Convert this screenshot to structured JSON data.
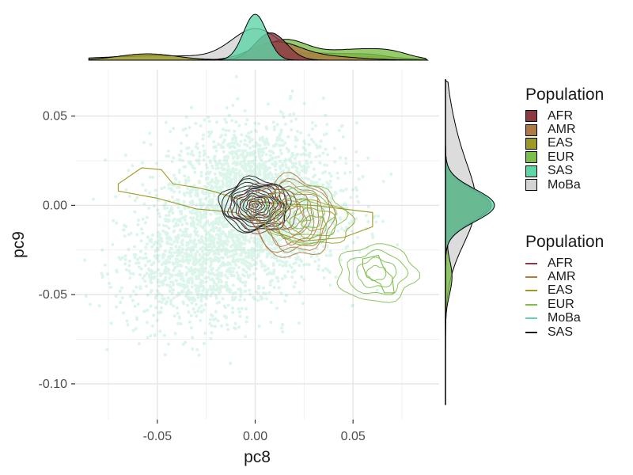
{
  "chart_data": {
    "type": "scatter",
    "xlabel": "pc8",
    "ylabel": "pc9",
    "xlim": [
      -0.092,
      0.094
    ],
    "ylim": [
      -0.12,
      0.076
    ],
    "x_ticks": [
      -0.05,
      0.0,
      0.05
    ],
    "x_tick_labels": [
      "-0.05",
      "0.00",
      "0.05"
    ],
    "y_ticks": [
      0.05,
      0.0,
      -0.05,
      -0.1
    ],
    "y_tick_labels": [
      "0.05",
      "0.00",
      "-0.05",
      "-0.10"
    ],
    "grid": true,
    "legend_position": "right",
    "scatter": {
      "name": "MoBa",
      "color": "#5fd6a8",
      "n_points": 3200,
      "center": [
        0.0,
        0.0
      ],
      "spread": [
        0.022,
        0.022
      ],
      "extra_cluster_center": [
        -0.035,
        -0.035
      ],
      "extra_cluster_spread": [
        0.018,
        0.018
      ]
    },
    "contours": [
      {
        "name": "MoBa",
        "color": "#5fd6a8",
        "centers": [
          [
            0.0,
            0.0
          ]
        ],
        "radii": [
          [
            0.006,
            0.006
          ]
        ]
      },
      {
        "name": "SAS",
        "color": "#1a1a1a",
        "centers": [
          [
            0.0,
            0.0
          ]
        ],
        "radii": [
          [
            0.0015,
            0.0012
          ],
          [
            0.003,
            0.0025
          ],
          [
            0.0045,
            0.0037
          ],
          [
            0.006,
            0.005
          ],
          [
            0.0075,
            0.0062
          ],
          [
            0.009,
            0.0075
          ],
          [
            0.0105,
            0.0088
          ],
          [
            0.012,
            0.01
          ],
          [
            0.0135,
            0.0113
          ],
          [
            0.015,
            0.0125
          ],
          [
            0.0165,
            0.0138
          ],
          [
            0.018,
            0.015
          ]
        ]
      },
      {
        "name": "AFR",
        "color": "#8b3a44",
        "centers": [
          [
            0.005,
            -0.002
          ]
        ],
        "radii": [
          [
            0.005,
            0.004
          ],
          [
            0.009,
            0.007
          ],
          [
            0.013,
            0.01
          ],
          [
            0.017,
            0.013
          ]
        ]
      },
      {
        "name": "AMR",
        "color": "#b07a45",
        "centers": [
          [
            0.02,
            -0.008
          ],
          [
            0.018,
            -0.005
          ]
        ],
        "radii": [
          [
            0.006,
            0.008
          ],
          [
            0.01,
            0.013
          ],
          [
            0.015,
            0.017
          ],
          [
            0.02,
            0.021
          ]
        ]
      },
      {
        "name": "EAS",
        "color": "#9a9a24",
        "centers": [
          [
            0.03,
            -0.01
          ]
        ],
        "radii": [
          [
            0.006,
            0.004
          ],
          [
            0.012,
            0.008
          ],
          [
            0.02,
            0.012
          ]
        ]
      },
      {
        "name": "EUR",
        "color": "#7cbf4a",
        "centers": [
          [
            0.025,
            -0.005
          ],
          [
            0.062,
            -0.038
          ]
        ],
        "radii": [
          [
            0.005,
            0.004
          ],
          [
            0.01,
            0.008
          ],
          [
            0.015,
            0.012
          ],
          [
            0.02,
            0.016
          ]
        ]
      }
    ],
    "eas_outline": [
      [
        -0.07,
        0.012
      ],
      [
        -0.058,
        0.021
      ],
      [
        -0.048,
        0.02
      ],
      [
        -0.042,
        0.012
      ],
      [
        -0.03,
        0.01
      ],
      [
        -0.022,
        0.008
      ],
      [
        -0.01,
        0.004
      ],
      [
        0.0,
        0.002
      ],
      [
        0.01,
        0.001
      ],
      [
        0.03,
        0.0
      ],
      [
        0.045,
        -0.002
      ],
      [
        0.06,
        -0.004
      ],
      [
        0.06,
        -0.012
      ],
      [
        0.045,
        -0.018
      ],
      [
        0.025,
        -0.02
      ],
      [
        0.01,
        -0.015
      ],
      [
        0.0,
        -0.008
      ],
      [
        -0.01,
        -0.004
      ],
      [
        -0.03,
        -0.002
      ],
      [
        -0.05,
        0.004
      ],
      [
        -0.07,
        0.008
      ]
    ],
    "eur_outline": [
      [
        0.055,
        -0.03
      ],
      [
        0.063,
        -0.028
      ],
      [
        0.066,
        -0.036
      ],
      [
        0.07,
        -0.04
      ],
      [
        0.071,
        -0.049
      ],
      [
        0.066,
        -0.049
      ],
      [
        0.064,
        -0.044
      ],
      [
        0.057,
        -0.04
      ],
      [
        0.055,
        -0.034
      ]
    ],
    "marginal_x": [
      {
        "name": "MoBa",
        "fill": "#d3d3d3",
        "peaks": [
          [
            0.0,
            1.0,
            0.012
          ],
          [
            -0.05,
            0.15,
            0.03
          ],
          [
            0.04,
            0.15,
            0.03
          ]
        ]
      },
      {
        "name": "EAS",
        "fill": "#9a9a24",
        "peaks": [
          [
            -0.055,
            0.22,
            0.015
          ],
          [
            0.03,
            0.25,
            0.02
          ],
          [
            0.06,
            0.12,
            0.01
          ]
        ]
      },
      {
        "name": "EUR",
        "fill": "#7cbf4a",
        "peaks": [
          [
            0.015,
            0.7,
            0.012
          ],
          [
            0.05,
            0.35,
            0.015
          ],
          [
            0.07,
            0.2,
            0.01
          ]
        ]
      },
      {
        "name": "AMR",
        "fill": "#b07a45",
        "peaks": [
          [
            0.01,
            0.55,
            0.012
          ],
          [
            0.03,
            0.15,
            0.02
          ]
        ]
      },
      {
        "name": "AFR",
        "fill": "#8b3a44",
        "peaks": [
          [
            0.008,
            0.95,
            0.008
          ]
        ]
      },
      {
        "name": "SAS",
        "fill": "#5fd6a8",
        "peaks": [
          [
            0.0,
            1.6,
            0.006
          ]
        ]
      }
    ],
    "marginal_y": [
      {
        "name": "MoBa",
        "fill": "#d3d3d3",
        "peaks": [
          [
            0.0,
            0.9,
            0.022
          ],
          [
            0.04,
            0.2,
            0.02
          ]
        ]
      },
      {
        "name": "EAS",
        "fill": "#9a9a24",
        "peaks": [
          [
            0.0,
            1.2,
            0.008
          ]
        ]
      },
      {
        "name": "EUR",
        "fill": "#7cbf4a",
        "peaks": [
          [
            0.0,
            1.4,
            0.008
          ],
          [
            -0.04,
            0.2,
            0.01
          ]
        ]
      },
      {
        "name": "AMR",
        "fill": "#b07a45",
        "peaks": [
          [
            0.0,
            1.3,
            0.009
          ]
        ]
      },
      {
        "name": "AFR",
        "fill": "#8b3a44",
        "peaks": [
          [
            0.0,
            1.4,
            0.009
          ]
        ]
      },
      {
        "name": "SAS",
        "fill": "#5fd6a8",
        "peaks": [
          [
            0.0,
            1.5,
            0.009
          ]
        ]
      }
    ]
  },
  "legend_fill": {
    "title": "Population",
    "items": [
      {
        "label": "AFR",
        "color": "#8b3a44"
      },
      {
        "label": "AMR",
        "color": "#b07a45"
      },
      {
        "label": "EAS",
        "color": "#9a9a24"
      },
      {
        "label": "EUR",
        "color": "#7cbf4a"
      },
      {
        "label": "SAS",
        "color": "#5fd6a8"
      },
      {
        "label": "MoBa",
        "color": "#d3d3d3"
      }
    ]
  },
  "legend_line": {
    "title": "Population",
    "items": [
      {
        "label": "AFR",
        "color": "#8b3a44"
      },
      {
        "label": "AMR",
        "color": "#b07a45"
      },
      {
        "label": "EAS",
        "color": "#9a9a24"
      },
      {
        "label": "EUR",
        "color": "#7cbf4a"
      },
      {
        "label": "MoBa",
        "color": "#5fd6a8"
      },
      {
        "label": "SAS",
        "color": "#1a1a1a"
      }
    ]
  }
}
